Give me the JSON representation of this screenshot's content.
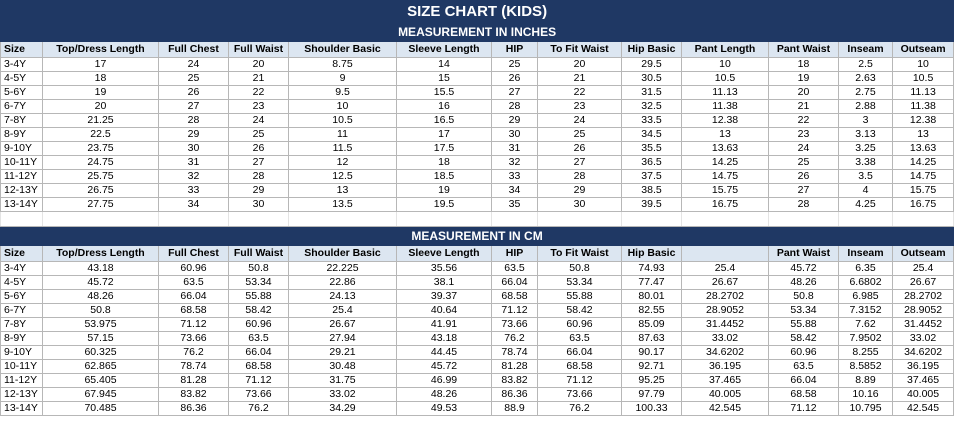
{
  "title": "SIZE CHART (KIDS)",
  "tables": [
    {
      "title": "MEASUREMENT IN INCHES",
      "headers": [
        "Size",
        "Top/Dress Length",
        "Full Chest",
        "Full Waist",
        "Shoulder Basic",
        "Sleeve Length",
        "HIP",
        "To Fit Waist",
        "Hip Basic",
        "Pant Length",
        "Pant Waist",
        "Inseam",
        "Outseam"
      ],
      "rows": [
        [
          "3-4Y",
          17,
          24,
          20,
          8.75,
          14,
          25,
          20,
          29.5,
          10,
          18,
          2.5,
          10
        ],
        [
          "4-5Y",
          18,
          25,
          21,
          9,
          15,
          26,
          21,
          30.5,
          10.5,
          19,
          2.63,
          10.5
        ],
        [
          "5-6Y",
          19,
          26,
          22,
          9.5,
          15.5,
          27,
          22,
          31.5,
          11.13,
          20,
          2.75,
          11.13
        ],
        [
          "6-7Y",
          20,
          27,
          23,
          10,
          16,
          28,
          23,
          32.5,
          11.38,
          21,
          2.88,
          11.38
        ],
        [
          "7-8Y",
          21.25,
          28,
          24,
          10.5,
          16.5,
          29,
          24,
          33.5,
          12.38,
          22,
          3,
          12.38
        ],
        [
          "8-9Y",
          22.5,
          29,
          25,
          11,
          17,
          30,
          25,
          34.5,
          13,
          23,
          3.13,
          13
        ],
        [
          "9-10Y",
          23.75,
          30,
          26,
          11.5,
          17.5,
          31,
          26,
          35.5,
          13.63,
          24,
          3.25,
          13.63
        ],
        [
          "10-11Y",
          24.75,
          31,
          27,
          12,
          18,
          32,
          27,
          36.5,
          14.25,
          25,
          3.38,
          14.25
        ],
        [
          "11-12Y",
          25.75,
          32,
          28,
          12.5,
          18.5,
          33,
          28,
          37.5,
          14.75,
          26,
          3.5,
          14.75
        ],
        [
          "12-13Y",
          26.75,
          33,
          29,
          13,
          19,
          34,
          29,
          38.5,
          15.75,
          27,
          4,
          15.75
        ],
        [
          "13-14Y",
          27.75,
          34,
          30,
          13.5,
          19.5,
          35,
          30,
          39.5,
          16.75,
          28,
          4.25,
          16.75
        ]
      ]
    },
    {
      "title": "MEASUREMENT IN CM",
      "headers": [
        "Size",
        "Top/Dress Length",
        "Full Chest",
        "Full Waist",
        "Shoulder Basic",
        "Sleeve Length",
        "HIP",
        "To Fit Waist",
        "Hip Basic",
        null,
        "Pant Waist",
        "Inseam",
        "Outseam"
      ],
      "rows": [
        [
          "3-4Y",
          43.18,
          60.96,
          50.8,
          22.225,
          35.56,
          63.5,
          50.8,
          74.93,
          25.4,
          45.72,
          6.35,
          25.4
        ],
        [
          "4-5Y",
          45.72,
          63.5,
          53.34,
          22.86,
          38.1,
          66.04,
          53.34,
          77.47,
          26.67,
          48.26,
          6.6802,
          26.67
        ],
        [
          "5-6Y",
          48.26,
          66.04,
          55.88,
          24.13,
          39.37,
          68.58,
          55.88,
          80.01,
          28.2702,
          50.8,
          6.985,
          28.2702
        ],
        [
          "6-7Y",
          50.8,
          68.58,
          58.42,
          25.4,
          40.64,
          71.12,
          58.42,
          82.55,
          28.9052,
          53.34,
          7.3152,
          28.9052
        ],
        [
          "7-8Y",
          53.975,
          71.12,
          60.96,
          26.67,
          41.91,
          73.66,
          60.96,
          85.09,
          31.4452,
          55.88,
          7.62,
          31.4452
        ],
        [
          "8-9Y",
          57.15,
          73.66,
          63.5,
          27.94,
          43.18,
          76.2,
          63.5,
          87.63,
          33.02,
          58.42,
          7.9502,
          33.02
        ],
        [
          "9-10Y",
          60.325,
          76.2,
          66.04,
          29.21,
          44.45,
          78.74,
          66.04,
          90.17,
          34.6202,
          60.96,
          8.255,
          34.6202
        ],
        [
          "10-11Y",
          62.865,
          78.74,
          68.58,
          30.48,
          45.72,
          81.28,
          68.58,
          92.71,
          36.195,
          63.5,
          8.5852,
          36.195
        ],
        [
          "11-12Y",
          65.405,
          81.28,
          71.12,
          31.75,
          46.99,
          83.82,
          71.12,
          95.25,
          37.465,
          66.04,
          8.89,
          37.465
        ],
        [
          "12-13Y",
          67.945,
          83.82,
          73.66,
          33.02,
          48.26,
          86.36,
          73.66,
          97.79,
          40.005,
          68.58,
          10.16,
          40.005
        ],
        [
          "13-14Y",
          70.485,
          86.36,
          76.2,
          34.29,
          49.53,
          88.9,
          76.2,
          100.33,
          42.545,
          71.12,
          10.795,
          42.545
        ]
      ]
    }
  ]
}
